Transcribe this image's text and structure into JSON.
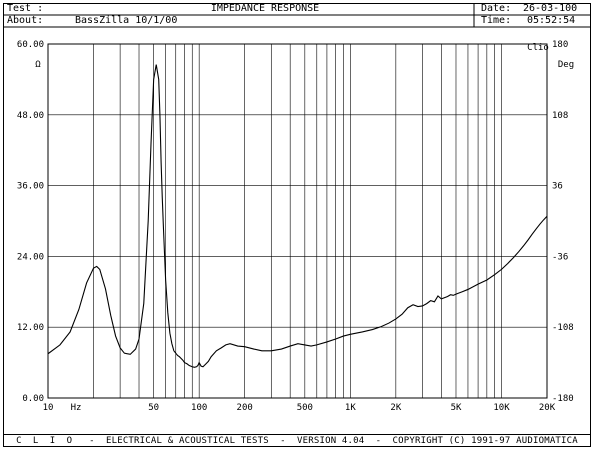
{
  "header": {
    "test_label": "Test :",
    "title": "IMPEDANCE RESPONSE",
    "about_label": "About:",
    "about_value": "BassZilla 10/1/00",
    "date_label": "Date:",
    "date_value": "26-03-100",
    "time_label": "Time:",
    "time_value": "05:52:54"
  },
  "footer": {
    "text": "C  L  I  O   -  ELECTRICAL & ACOUSTICAL TESTS  -  VERSION 4.04  -  COPYRIGHT (C) 1991-97 AUDIOMATICA"
  },
  "chart_data": {
    "type": "line",
    "title": "IMPEDANCE RESPONSE",
    "x_scale": "log",
    "xlim": [
      10,
      20000
    ],
    "ylim": [
      0,
      60
    ],
    "y2lim": [
      -180,
      180
    ],
    "ylabel": "Ω",
    "y2label": "Deg",
    "corner_label": "Clio",
    "x_unit_label": "Hz",
    "grid": true,
    "line_color": "#000000",
    "x_tick_labels": [
      {
        "v": 10,
        "t": "10"
      },
      {
        "v": 50,
        "t": "50"
      },
      {
        "v": 100,
        "t": "100"
      },
      {
        "v": 200,
        "t": "200"
      },
      {
        "v": 500,
        "t": "500"
      },
      {
        "v": 1000,
        "t": "1K"
      },
      {
        "v": 2000,
        "t": "2K"
      },
      {
        "v": 5000,
        "t": "5K"
      },
      {
        "v": 10000,
        "t": "10K"
      },
      {
        "v": 20000,
        "t": "20K"
      }
    ],
    "y_tick_labels": [
      "0.00",
      "12.00",
      "24.00",
      "36.00",
      "48.00",
      "60.00"
    ],
    "y2_tick_labels": [
      "-180",
      "-108",
      "-36",
      "36",
      "108",
      "180"
    ],
    "series": [
      {
        "x": [
          10,
          12,
          14,
          16,
          18,
          20,
          21,
          22,
          24,
          26,
          28,
          30,
          32,
          35,
          38,
          40,
          43,
          46,
          48,
          50,
          52,
          54,
          55,
          56,
          57,
          58,
          60,
          62,
          64,
          66,
          68,
          70,
          72,
          74,
          76,
          78,
          80,
          83,
          86,
          88,
          90,
          93,
          96,
          98,
          100,
          103,
          106,
          110,
          115,
          120,
          130,
          140,
          150,
          160,
          180,
          200,
          230,
          260,
          300,
          350,
          400,
          450,
          500,
          550,
          600,
          700,
          800,
          900,
          1000,
          1100,
          1200,
          1400,
          1600,
          1800,
          2000,
          2200,
          2400,
          2600,
          2800,
          3000,
          3200,
          3400,
          3600,
          3800,
          4000,
          4400,
          4600,
          4800,
          5000,
          5500,
          6000,
          7000,
          8000,
          9000,
          10000,
          11000,
          12000,
          13000,
          14000,
          15000,
          16000,
          17000,
          18000,
          19000,
          20000
        ],
        "values": [
          7.5,
          9.0,
          11.2,
          15.0,
          19.5,
          22.0,
          22.3,
          21.8,
          18.5,
          14.0,
          10.5,
          8.5,
          7.6,
          7.4,
          8.3,
          10.0,
          16.0,
          30.0,
          43.0,
          54.0,
          56.5,
          54.0,
          48.0,
          40.0,
          34.0,
          29.0,
          20.0,
          14.5,
          11.0,
          9.2,
          8.0,
          7.6,
          7.2,
          7.0,
          6.7,
          6.4,
          6.0,
          5.8,
          5.5,
          5.4,
          5.3,
          5.2,
          5.3,
          5.5,
          6.0,
          5.4,
          5.3,
          5.7,
          6.2,
          7.0,
          8.0,
          8.5,
          9.0,
          9.2,
          8.8,
          8.7,
          8.3,
          8.0,
          8.0,
          8.3,
          8.8,
          9.2,
          9.0,
          8.8,
          9.0,
          9.5,
          10.0,
          10.5,
          10.8,
          11.0,
          11.2,
          11.6,
          12.1,
          12.7,
          13.4,
          14.2,
          15.3,
          15.8,
          15.5,
          15.6,
          16.0,
          16.5,
          16.3,
          17.3,
          16.8,
          17.2,
          17.5,
          17.4,
          17.6,
          18.0,
          18.4,
          19.3,
          20.0,
          20.9,
          21.8,
          22.8,
          23.8,
          24.8,
          25.8,
          26.8,
          27.8,
          28.7,
          29.5,
          30.2,
          30.8
        ]
      }
    ]
  }
}
